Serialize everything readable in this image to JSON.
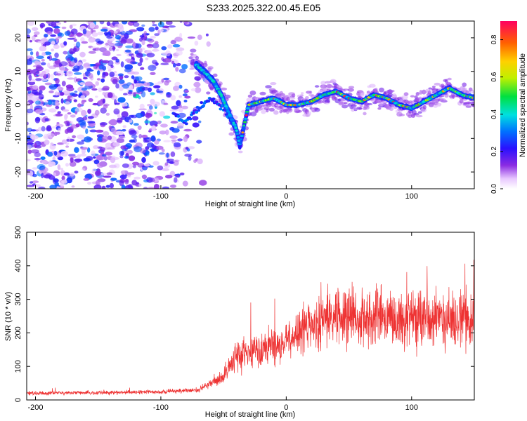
{
  "title": "S233.2025.322.00.45.E05",
  "chart_data": [
    {
      "type": "heatmap",
      "xlabel": "Height of straight line (km)",
      "ylabel": "Frequency (Hz)",
      "xlim": [
        -207,
        150
      ],
      "ylim": [
        -25,
        25
      ],
      "xticks": [
        -200,
        -100,
        0,
        100
      ],
      "yticks": [
        -20,
        -10,
        0,
        10,
        20
      ],
      "colorbar": {
        "label": "Normalized spectral amplitude",
        "range": [
          0,
          0.9
        ],
        "ticks": [
          0.0,
          0.2,
          0.4,
          0.6,
          0.8
        ]
      },
      "ridge": [
        {
          "x": -72,
          "y": 12
        },
        {
          "x": -63,
          "y": 9
        },
        {
          "x": -58,
          "y": 7
        },
        {
          "x": -52,
          "y": 3
        },
        {
          "x": -45,
          "y": -3
        },
        {
          "x": -40,
          "y": -7
        },
        {
          "x": -37,
          "y": -12
        },
        {
          "x": -30,
          "y": 0
        },
        {
          "x": -20,
          "y": 1
        },
        {
          "x": -10,
          "y": 2
        },
        {
          "x": 0,
          "y": 0
        },
        {
          "x": 10,
          "y": 0
        },
        {
          "x": 20,
          "y": 1
        },
        {
          "x": 30,
          "y": 3
        },
        {
          "x": 40,
          "y": 4
        },
        {
          "x": 50,
          "y": 2
        },
        {
          "x": 60,
          "y": 1
        },
        {
          "x": 70,
          "y": 3
        },
        {
          "x": 80,
          "y": 2
        },
        {
          "x": 90,
          "y": 0
        },
        {
          "x": 100,
          "y": -1
        },
        {
          "x": 110,
          "y": 1
        },
        {
          "x": 120,
          "y": 3
        },
        {
          "x": 130,
          "y": 5
        },
        {
          "x": 140,
          "y": 3
        },
        {
          "x": 150,
          "y": 2
        }
      ],
      "secondary_ridge": [
        {
          "x": -90,
          "y": -3
        },
        {
          "x": -80,
          "y": -5
        },
        {
          "x": -70,
          "y": -1
        },
        {
          "x": -60,
          "y": 2
        },
        {
          "x": -50,
          "y": -1
        },
        {
          "x": -42,
          "y": -6
        }
      ]
    },
    {
      "type": "line",
      "xlabel": "Height of straight line (km)",
      "ylabel": "SNR (10 * v/v)",
      "xlim": [
        -207,
        150
      ],
      "ylim": [
        0,
        500
      ],
      "xticks": [
        -200,
        -100,
        0,
        100
      ],
      "yticks": [
        0,
        100,
        200,
        300,
        400,
        500
      ],
      "color": "#ee3333",
      "envelope": [
        {
          "x": -207,
          "y": 20
        },
        {
          "x": -150,
          "y": 22
        },
        {
          "x": -100,
          "y": 24
        },
        {
          "x": -70,
          "y": 30
        },
        {
          "x": -50,
          "y": 70
        },
        {
          "x": -40,
          "y": 130
        },
        {
          "x": -20,
          "y": 150
        },
        {
          "x": 0,
          "y": 175
        },
        {
          "x": 20,
          "y": 225
        },
        {
          "x": 40,
          "y": 245
        },
        {
          "x": 60,
          "y": 250
        },
        {
          "x": 80,
          "y": 245
        },
        {
          "x": 100,
          "y": 240
        },
        {
          "x": 120,
          "y": 245
        },
        {
          "x": 150,
          "y": 240
        }
      ]
    }
  ]
}
